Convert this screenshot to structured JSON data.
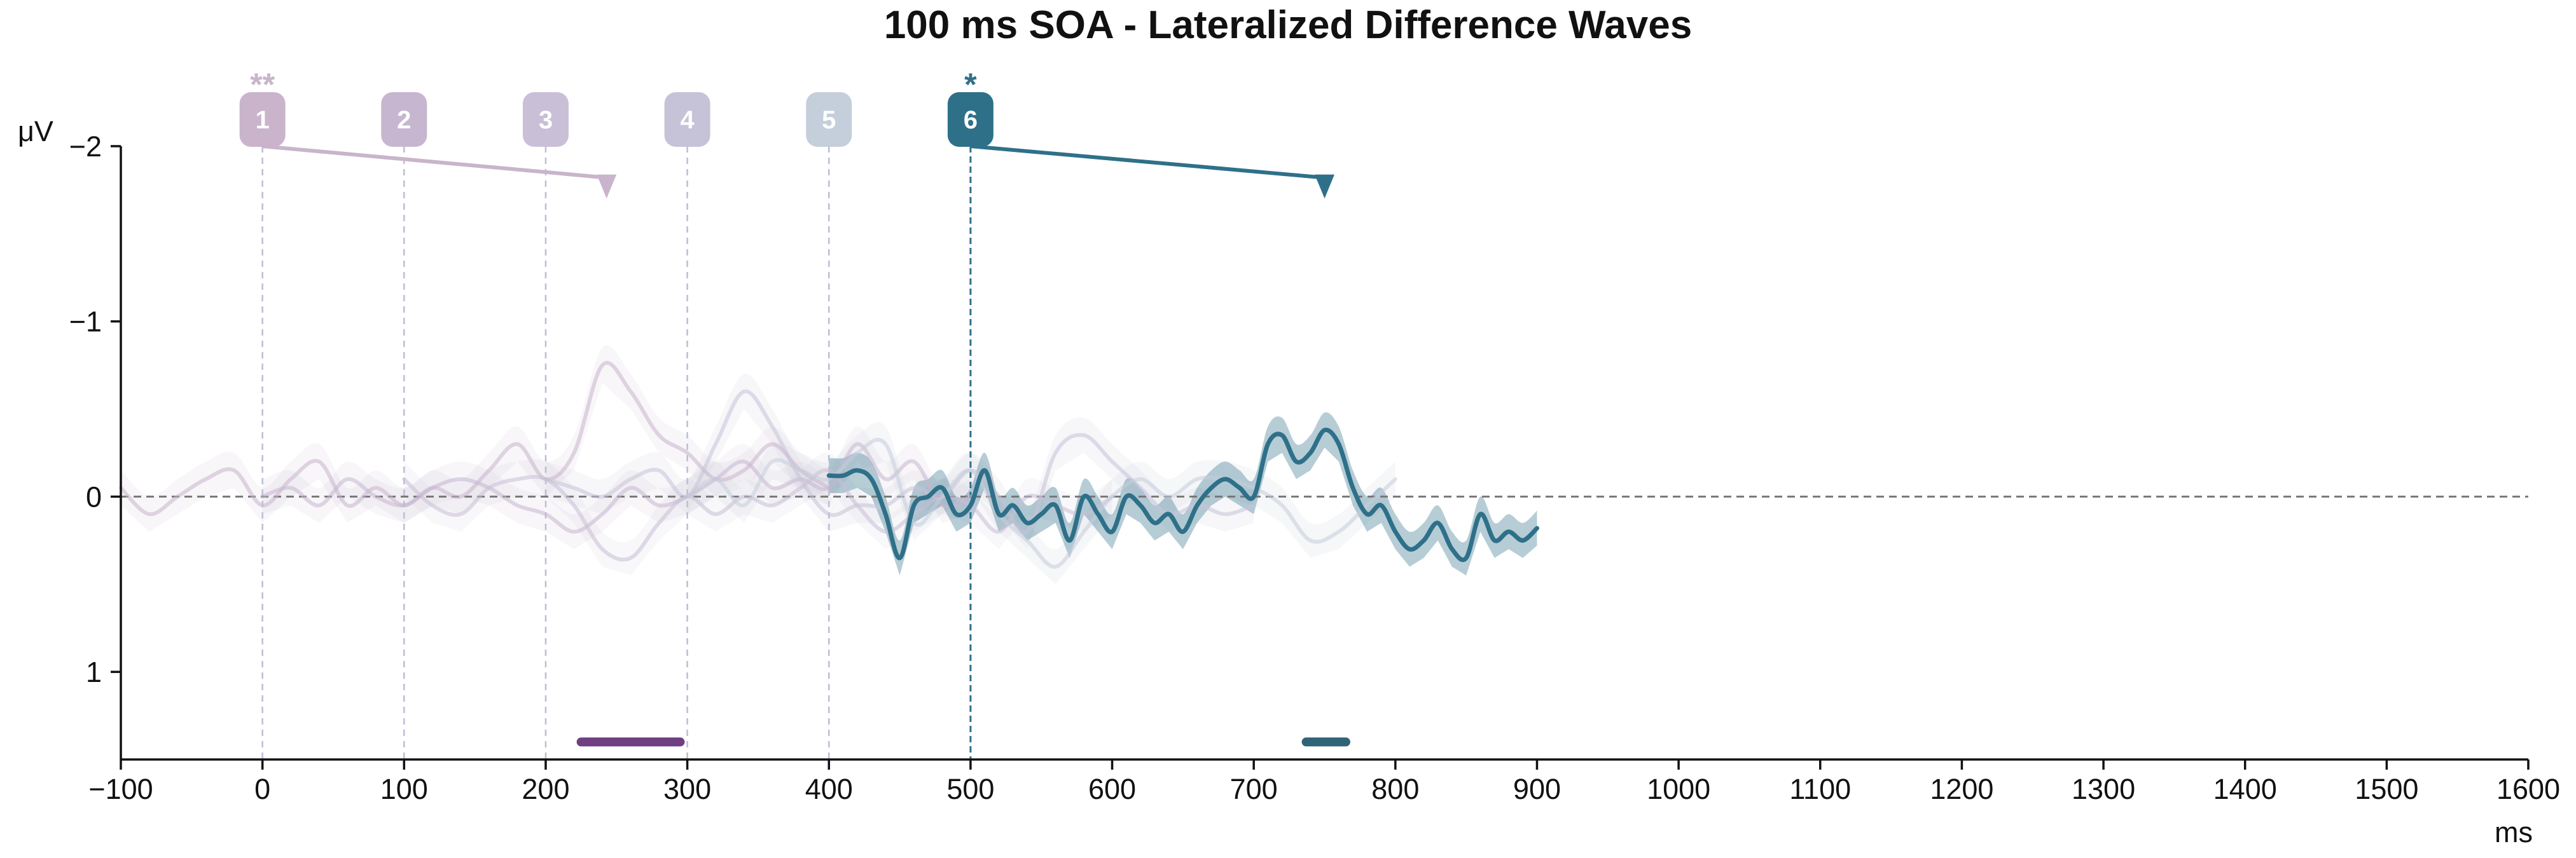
{
  "chart_data": {
    "type": "line",
    "title": "100 ms SOA - Lateralized Difference Waves",
    "xlabel": "ms",
    "ylabel": "μV",
    "xlim": [
      -100,
      1600
    ],
    "ylim": [
      1.5,
      -2
    ],
    "y_inverted": true,
    "x_ticks": [
      -100,
      0,
      100,
      200,
      300,
      400,
      500,
      600,
      700,
      800,
      900,
      1000,
      1100,
      1200,
      1300,
      1400,
      1500,
      1600
    ],
    "y_ticks": [
      -2,
      -1,
      0,
      1
    ],
    "y_tick_labels": [
      "−2",
      "−1",
      "0",
      "1"
    ],
    "x_tick_labels": [
      "−100",
      "0",
      "100",
      "200",
      "300",
      "400",
      "500",
      "600",
      "700",
      "800",
      "900",
      "1000",
      "1100",
      "1200",
      "1300",
      "1400",
      "1500",
      "1600"
    ],
    "zero_line": "dashed",
    "grid": false,
    "highlighted_series": 6,
    "series": [
      {
        "name": "1",
        "onset": 0,
        "color": "#c9b4cc",
        "opacity": 0.35,
        "x": [
          -100,
          -80,
          -60,
          -40,
          -20,
          0,
          20,
          40,
          60,
          80,
          100,
          120,
          140,
          160,
          180,
          200,
          220,
          240,
          260,
          280,
          300,
          320,
          340,
          360,
          380,
          400
        ],
        "values": [
          -0.05,
          0.1,
          0.0,
          -0.1,
          -0.15,
          0.05,
          -0.1,
          -0.2,
          0.05,
          -0.05,
          0.05,
          -0.05,
          0.0,
          -0.15,
          -0.3,
          -0.1,
          -0.25,
          -0.75,
          -0.6,
          -0.35,
          -0.25,
          -0.1,
          -0.15,
          -0.3,
          -0.15,
          -0.05
        ]
      },
      {
        "name": "2",
        "onset": 100,
        "color": "#c7b6d0",
        "opacity": 0.35,
        "x": [
          0,
          20,
          40,
          60,
          80,
          100,
          120,
          140,
          160,
          180,
          200,
          220,
          240,
          260,
          280,
          300,
          320,
          340,
          360,
          380,
          400,
          420,
          440,
          460,
          480,
          500
        ],
        "values": [
          0.0,
          -0.05,
          0.05,
          -0.1,
          0.0,
          0.05,
          -0.05,
          -0.1,
          -0.05,
          0.05,
          0.1,
          0.2,
          0.1,
          -0.05,
          0.05,
          0.0,
          -0.1,
          -0.2,
          -0.05,
          -0.1,
          -0.05,
          -0.3,
          -0.1,
          -0.2,
          0.05,
          0.0
        ]
      },
      {
        "name": "3",
        "onset": 200,
        "color": "#c9bfd6",
        "opacity": 0.35,
        "x": [
          100,
          120,
          140,
          160,
          180,
          200,
          220,
          240,
          260,
          280,
          300,
          320,
          340,
          360,
          380,
          400,
          420,
          440,
          460,
          480,
          500,
          520,
          540,
          560,
          580,
          600
        ],
        "values": [
          -0.1,
          0.05,
          0.1,
          -0.05,
          -0.1,
          -0.1,
          0.05,
          0.3,
          0.35,
          0.15,
          0.0,
          0.1,
          0.0,
          0.05,
          -0.05,
          -0.15,
          0.05,
          0.2,
          0.1,
          0.0,
          0.05,
          0.2,
          0.0,
          0.05,
          0.1,
          0.0
        ]
      },
      {
        "name": "4",
        "onset": 300,
        "color": "#c6c3d8",
        "opacity": 0.4,
        "x": [
          200,
          220,
          240,
          260,
          280,
          300,
          320,
          340,
          360,
          380,
          400,
          420,
          440,
          460,
          480,
          500,
          520,
          540,
          560,
          580,
          600,
          620,
          640,
          660,
          680,
          700
        ],
        "values": [
          -0.1,
          -0.05,
          0.0,
          -0.1,
          -0.15,
          0.0,
          -0.3,
          -0.6,
          -0.4,
          -0.1,
          0.1,
          0.05,
          0.05,
          -0.05,
          0.0,
          -0.15,
          0.0,
          0.2,
          -0.25,
          -0.35,
          -0.2,
          -0.05,
          0.1,
          0.05,
          0.1,
          0.05
        ]
      },
      {
        "name": "5",
        "onset": 400,
        "color": "#c5cedb",
        "opacity": 0.45,
        "x": [
          300,
          320,
          340,
          360,
          380,
          400,
          420,
          440,
          460,
          480,
          500,
          520,
          540,
          560,
          580,
          600,
          620,
          640,
          660,
          680,
          700,
          720,
          740,
          760,
          780,
          800
        ],
        "values": [
          0.0,
          -0.1,
          0.05,
          -0.2,
          -0.15,
          -0.1,
          -0.25,
          -0.3,
          0.15,
          0.0,
          -0.15,
          0.1,
          0.25,
          0.4,
          0.2,
          0.0,
          -0.1,
          0.0,
          -0.1,
          -0.1,
          -0.05,
          0.05,
          0.25,
          0.2,
          0.05,
          -0.1
        ]
      },
      {
        "name": "6",
        "onset": 500,
        "color": "#2f7089",
        "opacity": 1.0,
        "x": [
          400,
          410,
          420,
          430,
          440,
          450,
          460,
          470,
          480,
          490,
          500,
          510,
          520,
          530,
          540,
          550,
          560,
          570,
          580,
          590,
          600,
          610,
          620,
          630,
          640,
          650,
          660,
          670,
          680,
          690,
          700,
          710,
          720,
          730,
          740,
          750,
          760,
          770,
          780,
          790,
          800,
          810,
          820,
          830,
          840,
          850,
          860,
          870,
          880,
          890,
          900
        ],
        "values": [
          -0.12,
          -0.12,
          -0.15,
          -0.1,
          0.1,
          0.35,
          0.05,
          0.0,
          -0.05,
          0.1,
          0.05,
          -0.15,
          0.1,
          0.05,
          0.15,
          0.1,
          0.05,
          0.25,
          0.0,
          0.1,
          0.2,
          0.0,
          0.05,
          0.15,
          0.1,
          0.2,
          0.05,
          -0.05,
          -0.1,
          -0.05,
          0.0,
          -0.3,
          -0.35,
          -0.2,
          -0.25,
          -0.38,
          -0.3,
          -0.05,
          0.1,
          0.05,
          0.2,
          0.3,
          0.25,
          0.15,
          0.3,
          0.35,
          0.1,
          0.25,
          0.2,
          0.25,
          0.18
        ]
      }
    ],
    "markers": [
      {
        "label": "1",
        "x": 0,
        "color": "#c9b4cc",
        "significance": "**"
      },
      {
        "label": "2",
        "x": 100,
        "color": "#c7b6d0",
        "significance": ""
      },
      {
        "label": "3",
        "x": 200,
        "color": "#c9bfd6",
        "significance": ""
      },
      {
        "label": "4",
        "x": 300,
        "color": "#c6c3d8",
        "significance": ""
      },
      {
        "label": "5",
        "x": 400,
        "color": "#c5cedb",
        "significance": ""
      },
      {
        "label": "6",
        "x": 500,
        "color": "#2f7089",
        "significance": "*"
      }
    ],
    "latency_arrows": [
      {
        "from_marker": "1",
        "x_start": 0,
        "x_end": 243,
        "y_start": -2.0,
        "y_end": -1.82,
        "color": "#c9b4cc"
      },
      {
        "from_marker": "6",
        "x_start": 500,
        "x_end": 750,
        "y_start": -2.0,
        "y_end": -1.82,
        "color": "#2f7089"
      }
    ],
    "significance_bars": [
      {
        "x_start": 225,
        "x_end": 295,
        "y": 1.4,
        "color": "#6f3f82"
      },
      {
        "x_start": 737,
        "x_end": 765,
        "y": 1.4,
        "color": "#2f6478"
      }
    ]
  }
}
